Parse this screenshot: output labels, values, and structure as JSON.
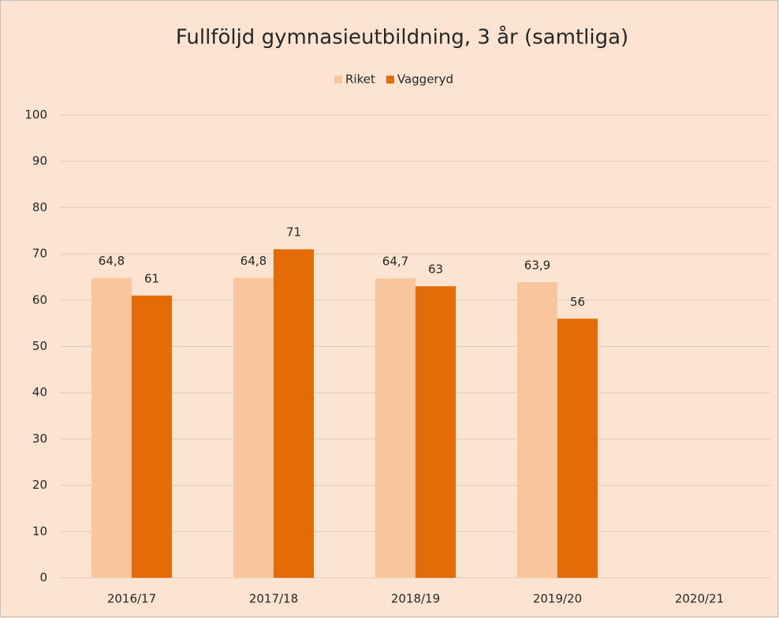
{
  "chart_data": {
    "type": "bar",
    "title": "Fullföljd gymnasieutbildning, 3 år (samtliga)",
    "categories": [
      "2016/17",
      "2017/18",
      "2018/19",
      "2019/20",
      "2020/21"
    ],
    "series": [
      {
        "name": "Riket",
        "color": "#f9c59c",
        "values": [
          64.8,
          64.8,
          64.7,
          63.9,
          null
        ],
        "value_labels": [
          "64,8",
          "64,8",
          "64,7",
          "63,9",
          null
        ]
      },
      {
        "name": "Vaggeryd",
        "color": "#e36c09",
        "values": [
          61,
          71,
          63,
          56,
          null
        ]
      }
    ],
    "ylim": [
      0,
      100
    ],
    "yticks": [
      0,
      10,
      20,
      30,
      40,
      50,
      60,
      70,
      80,
      90,
      100
    ],
    "grid": true,
    "legend": "top"
  }
}
